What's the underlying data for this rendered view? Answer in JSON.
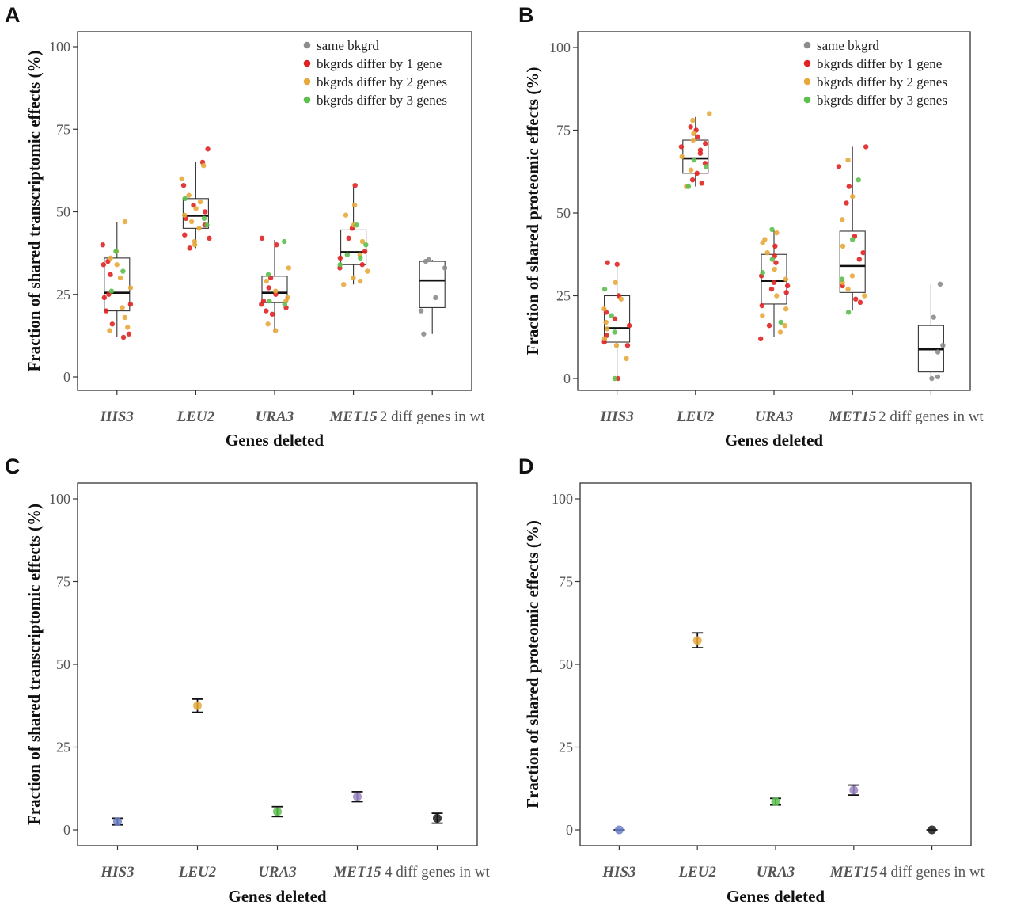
{
  "colors": {
    "same": "#8c8c8c",
    "differ1": "#e02424",
    "differ2": "#e8a93c",
    "differ3": "#5cbf4e",
    "his3": "#6b7fc8",
    "leu2": "#e8a93c",
    "ura3": "#5cbf4e",
    "met15": "#9b86c4",
    "wt": "#1a1a1a",
    "frame": "#333333"
  },
  "chart_data": [
    {
      "panel": "A",
      "type": "box",
      "xlabel": "Genes deleted",
      "ylabel": "Fraction of shared transcriptomic effects (%)",
      "ylim": [
        0,
        100
      ],
      "yticks": [
        0,
        25,
        50,
        75,
        100
      ],
      "categories": [
        "HIS3",
        "LEU2",
        "URA3",
        "MET15",
        "2 diff genes in wt"
      ],
      "italic_categories": [
        true,
        true,
        true,
        true,
        false
      ],
      "legend": [
        "same bkgrd",
        "bkgrds differ by 1 gene",
        "bkgrds differ by 2 genes",
        "bkgrds differ by 3 genes"
      ],
      "legend_position": "top-right",
      "boxes": [
        {
          "min": 12,
          "q1": 20,
          "median": 25.5,
          "q3": 36,
          "max": 47
        },
        {
          "min": 39,
          "q1": 45,
          "median": 48.8,
          "q3": 54,
          "max": 65
        },
        {
          "min": 13.5,
          "q1": 22.5,
          "median": 25.5,
          "q3": 30.5,
          "max": 41.5
        },
        {
          "min": 28,
          "q1": 34,
          "median": 37.8,
          "q3": 44.5,
          "max": 57.5
        },
        {
          "min": 13,
          "q1": 21,
          "median": 29.2,
          "q3": 35,
          "max": 35.5
        }
      ],
      "points": [
        [
          [
            40,
            1
          ],
          [
            35,
            1
          ],
          [
            34,
            1
          ],
          [
            31,
            1
          ],
          [
            25,
            1
          ],
          [
            24,
            1
          ],
          [
            22,
            1
          ],
          [
            20,
            1
          ],
          [
            16,
            1
          ],
          [
            13,
            1
          ],
          [
            12,
            1
          ],
          [
            47,
            2
          ],
          [
            38,
            2
          ],
          [
            36,
            2
          ],
          [
            34,
            2
          ],
          [
            30,
            2
          ],
          [
            27,
            2
          ],
          [
            21,
            2
          ],
          [
            18,
            2
          ],
          [
            15,
            2
          ],
          [
            14,
            2
          ],
          [
            32,
            3
          ],
          [
            26,
            3
          ],
          [
            38,
            3
          ]
        ],
        [
          [
            69,
            1
          ],
          [
            65,
            1
          ],
          [
            58,
            1
          ],
          [
            52,
            1
          ],
          [
            50,
            1
          ],
          [
            48,
            1
          ],
          [
            46,
            1
          ],
          [
            43,
            1
          ],
          [
            42,
            1
          ],
          [
            39,
            1
          ],
          [
            64,
            2
          ],
          [
            60,
            2
          ],
          [
            55,
            2
          ],
          [
            53,
            2
          ],
          [
            51,
            2
          ],
          [
            49,
            2
          ],
          [
            47,
            2
          ],
          [
            45,
            2
          ],
          [
            41,
            2
          ],
          [
            40,
            2
          ],
          [
            54,
            3
          ],
          [
            48,
            3
          ],
          [
            46,
            3
          ]
        ],
        [
          [
            42,
            1
          ],
          [
            40,
            1
          ],
          [
            30,
            1
          ],
          [
            27,
            1
          ],
          [
            25,
            1
          ],
          [
            23,
            1
          ],
          [
            22,
            1
          ],
          [
            21,
            1
          ],
          [
            20,
            1
          ],
          [
            19,
            1
          ],
          [
            33,
            2
          ],
          [
            29,
            2
          ],
          [
            26,
            2
          ],
          [
            24,
            2
          ],
          [
            23,
            2
          ],
          [
            16,
            2
          ],
          [
            14,
            2
          ],
          [
            41,
            3
          ],
          [
            23,
            3
          ],
          [
            22,
            3
          ],
          [
            31,
            3
          ]
        ],
        [
          [
            58,
            1
          ],
          [
            45,
            1
          ],
          [
            42,
            1
          ],
          [
            38,
            1
          ],
          [
            36,
            1
          ],
          [
            34,
            1
          ],
          [
            33,
            1
          ],
          [
            52,
            2
          ],
          [
            49,
            2
          ],
          [
            46,
            2
          ],
          [
            41,
            2
          ],
          [
            37,
            2
          ],
          [
            32,
            2
          ],
          [
            30,
            2
          ],
          [
            29,
            2
          ],
          [
            28,
            2
          ],
          [
            46,
            3
          ],
          [
            40,
            3
          ],
          [
            37,
            3
          ],
          [
            36,
            3
          ],
          [
            34,
            3
          ]
        ],
        [
          [
            35.5,
            0
          ],
          [
            35,
            0
          ],
          [
            33,
            0
          ],
          [
            24,
            0
          ],
          [
            20,
            0
          ],
          [
            13,
            0
          ]
        ]
      ]
    },
    {
      "panel": "B",
      "type": "box",
      "xlabel": "Genes deleted",
      "ylabel": "Fraction of shared proteomic effects (%)",
      "ylim": [
        0,
        100
      ],
      "yticks": [
        0,
        25,
        50,
        75,
        100
      ],
      "categories": [
        "HIS3",
        "LEU2",
        "URA3",
        "MET15",
        "2 diff genes in wt"
      ],
      "italic_categories": [
        true,
        true,
        true,
        true,
        false
      ],
      "legend": [
        "same bkgrd",
        "bkgrds differ by 1 gene",
        "bkgrds differ by 2 genes",
        "bkgrds differ by 3 genes"
      ],
      "legend_position": "top-right",
      "boxes": [
        {
          "min": 0,
          "q1": 11,
          "median": 15.2,
          "q3": 25,
          "max": 34
        },
        {
          "min": 58,
          "q1": 62,
          "median": 66.5,
          "q3": 72,
          "max": 79
        },
        {
          "min": 12.5,
          "q1": 22.5,
          "median": 29.5,
          "q3": 37.5,
          "max": 45
        },
        {
          "min": 20.5,
          "q1": 26,
          "median": 34,
          "q3": 44.5,
          "max": 70
        },
        {
          "min": 0,
          "q1": 2,
          "median": 8.8,
          "q3": 16,
          "max": 28.5
        }
      ],
      "points": [
        [
          [
            35,
            1
          ],
          [
            34.5,
            1
          ],
          [
            25,
            1
          ],
          [
            20,
            1
          ],
          [
            18,
            1
          ],
          [
            16,
            1
          ],
          [
            13,
            1
          ],
          [
            11,
            1
          ],
          [
            10,
            1
          ],
          [
            0,
            1
          ],
          [
            29,
            2
          ],
          [
            24,
            2
          ],
          [
            21,
            2
          ],
          [
            17,
            2
          ],
          [
            15,
            2
          ],
          [
            12,
            2
          ],
          [
            10,
            2
          ],
          [
            6,
            2
          ],
          [
            27,
            3
          ],
          [
            19,
            3
          ],
          [
            14,
            3
          ],
          [
            0,
            3
          ]
        ],
        [
          [
            76,
            1
          ],
          [
            75,
            1
          ],
          [
            73,
            1
          ],
          [
            71,
            1
          ],
          [
            70,
            1
          ],
          [
            69,
            1
          ],
          [
            68,
            1
          ],
          [
            65,
            1
          ],
          [
            62,
            1
          ],
          [
            60,
            1
          ],
          [
            59,
            1
          ],
          [
            80,
            2
          ],
          [
            78,
            2
          ],
          [
            74,
            2
          ],
          [
            72,
            2
          ],
          [
            67,
            2
          ],
          [
            63,
            2
          ],
          [
            58,
            2
          ],
          [
            66,
            3
          ],
          [
            64,
            3
          ],
          [
            58,
            3
          ]
        ],
        [
          [
            40,
            1
          ],
          [
            37,
            1
          ],
          [
            35,
            1
          ],
          [
            31,
            1
          ],
          [
            29,
            1
          ],
          [
            28,
            1
          ],
          [
            27,
            1
          ],
          [
            26,
            1
          ],
          [
            22,
            1
          ],
          [
            16,
            1
          ],
          [
            12,
            1
          ],
          [
            44,
            2
          ],
          [
            42,
            2
          ],
          [
            41,
            2
          ],
          [
            38,
            2
          ],
          [
            33,
            2
          ],
          [
            30,
            2
          ],
          [
            25,
            2
          ],
          [
            21,
            2
          ],
          [
            19,
            2
          ],
          [
            16,
            2
          ],
          [
            14,
            2
          ],
          [
            45,
            3
          ],
          [
            36,
            3
          ],
          [
            32,
            3
          ],
          [
            17,
            3
          ]
        ],
        [
          [
            70,
            1
          ],
          [
            64,
            1
          ],
          [
            58,
            1
          ],
          [
            53,
            1
          ],
          [
            43,
            1
          ],
          [
            38,
            1
          ],
          [
            36,
            1
          ],
          [
            28,
            1
          ],
          [
            24,
            1
          ],
          [
            23,
            1
          ],
          [
            66,
            2
          ],
          [
            55,
            2
          ],
          [
            48,
            2
          ],
          [
            40,
            2
          ],
          [
            31,
            2
          ],
          [
            29,
            2
          ],
          [
            27,
            2
          ],
          [
            25,
            2
          ],
          [
            60,
            3
          ],
          [
            42,
            3
          ],
          [
            30,
            3
          ],
          [
            20,
            3
          ]
        ],
        [
          [
            28.5,
            0
          ],
          [
            18.5,
            0
          ],
          [
            10,
            0
          ],
          [
            8,
            0
          ],
          [
            0.5,
            0
          ],
          [
            0,
            0
          ]
        ]
      ]
    },
    {
      "panel": "C",
      "type": "errorbar",
      "xlabel": "Genes deleted",
      "ylabel": "Fraction of shared transcriptomic effects (%)",
      "ylim": [
        0,
        100
      ],
      "yticks": [
        0,
        25,
        50,
        75,
        100
      ],
      "categories": [
        "HIS3",
        "LEU2",
        "URA3",
        "MET15",
        "4 diff genes in wt"
      ],
      "italic_categories": [
        true,
        true,
        true,
        true,
        false
      ],
      "values": [
        2.5,
        37.5,
        5.5,
        10,
        3.5
      ],
      "err_low": [
        1.5,
        35.5,
        4,
        8.5,
        2
      ],
      "err_high": [
        3.5,
        39.5,
        7,
        11.5,
        5
      ]
    },
    {
      "panel": "D",
      "type": "errorbar",
      "xlabel": "Genes deleted",
      "ylabel": "Fraction of shared proteomic effects (%)",
      "ylim": [
        0,
        100
      ],
      "yticks": [
        0,
        25,
        50,
        75,
        100
      ],
      "categories": [
        "HIS3",
        "LEU2",
        "URA3",
        "MET15",
        "4 diff genes in wt"
      ],
      "italic_categories": [
        true,
        true,
        true,
        true,
        false
      ],
      "values": [
        0,
        57.2,
        8.5,
        12,
        0
      ],
      "err_low": [
        0,
        55,
        7.5,
        10.5,
        0
      ],
      "err_high": [
        0,
        59.5,
        9.5,
        13.5,
        0
      ]
    }
  ]
}
